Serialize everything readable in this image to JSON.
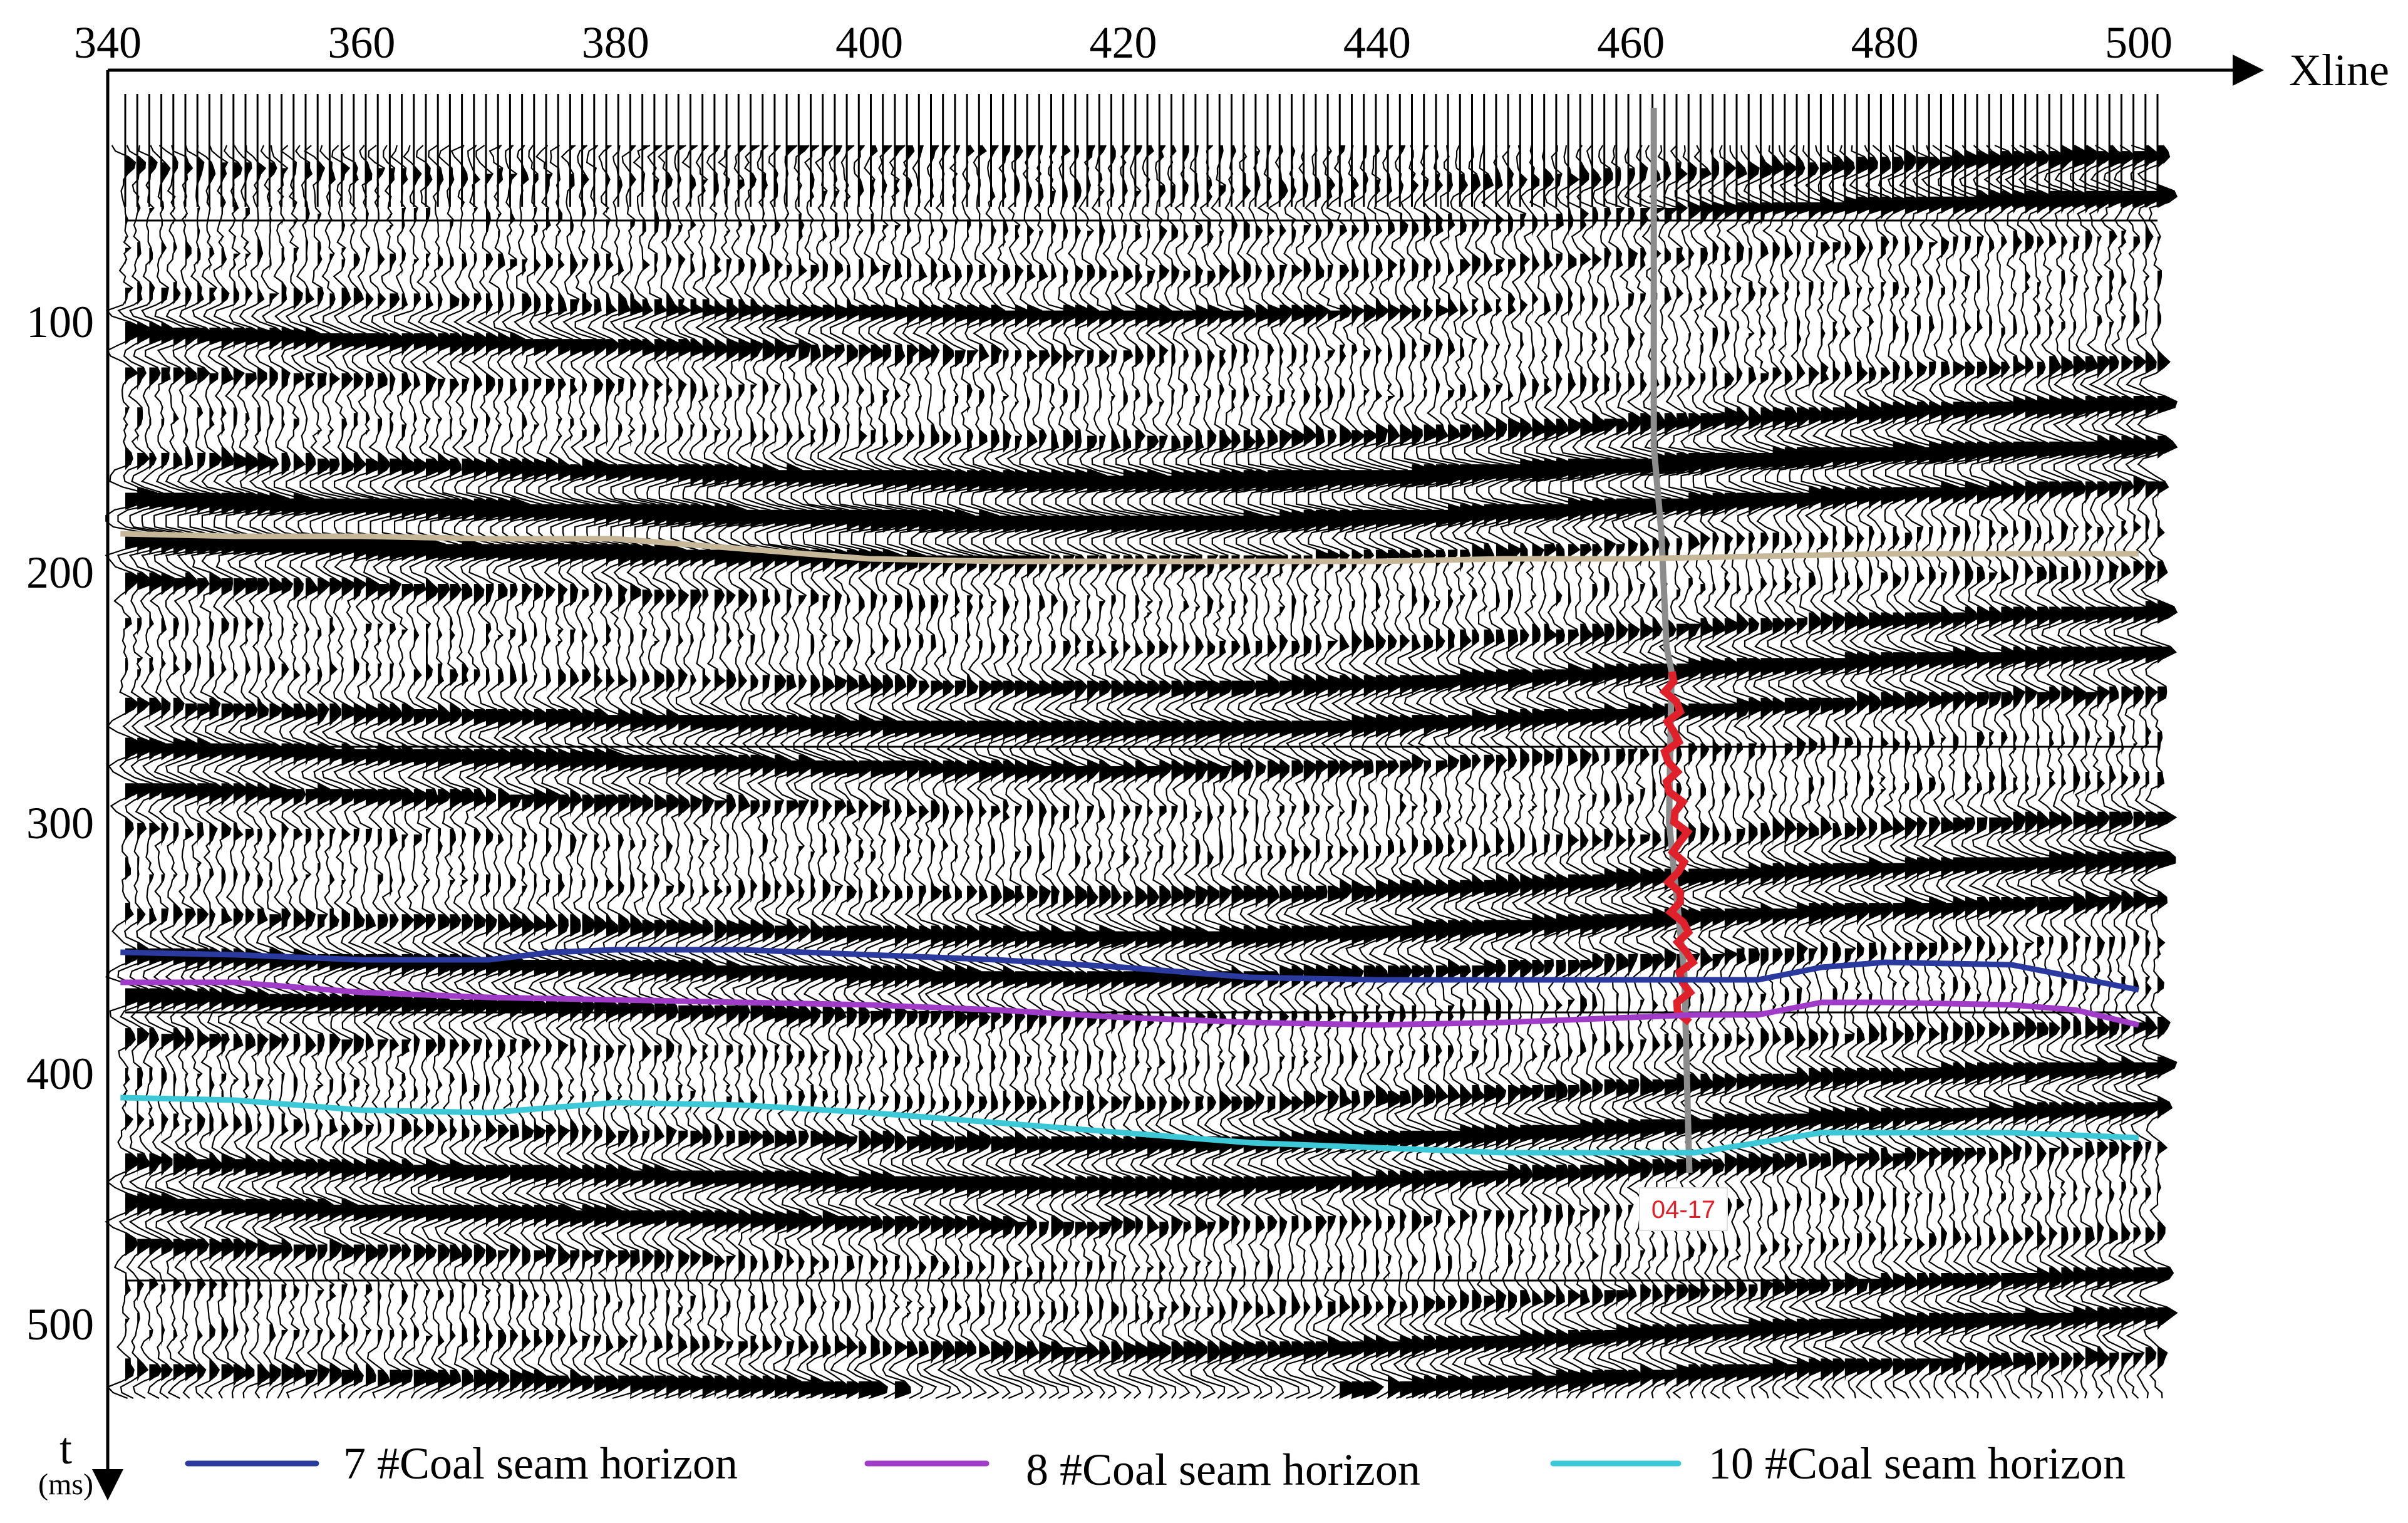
{
  "chart_data": {
    "type": "line",
    "xlabel": "Xline",
    "ylabel": "t",
    "ylabel_unit": "(ms)",
    "xlim": [
      340,
      500
    ],
    "ylim": [
      0,
      535
    ],
    "x_ticks": [
      "340",
      "360",
      "380",
      "400",
      "420",
      "440",
      "460",
      "480",
      "500"
    ],
    "y_ticks": [
      "100",
      "200",
      "300",
      "400",
      "500"
    ],
    "y_inverted": true,
    "grid": false,
    "legend_position": "bottom",
    "background": "variable-area seismic wiggle traces (black peaks on white)",
    "series": [
      {
        "name": "7 #Coal seam horizon",
        "color": "#2b3a9e",
        "x": [
          341,
          350,
          360,
          370,
          375,
          380,
          390,
          400,
          410,
          420,
          430,
          440,
          450,
          460,
          465,
          470,
          475,
          480,
          490,
          495,
          500
        ],
        "y": [
          352,
          353,
          355,
          355,
          352,
          351,
          351,
          353,
          355,
          358,
          362,
          363,
          363,
          363,
          363,
          363,
          358,
          356,
          357,
          362,
          367
        ]
      },
      {
        "name": "8 #Coal seam horizon",
        "color": "#a03cc8",
        "x": [
          341,
          350,
          360,
          370,
          380,
          390,
          400,
          410,
          420,
          430,
          440,
          450,
          460,
          465,
          470,
          475,
          480,
          490,
          495,
          500
        ],
        "y": [
          364,
          364,
          368,
          370,
          371,
          372,
          373,
          375,
          378,
          380,
          381,
          380,
          378,
          377,
          377,
          372,
          372,
          373,
          375,
          381
        ]
      },
      {
        "name": "10 #Coal seam horizon",
        "color": "#3cc8d6",
        "x": [
          341,
          350,
          360,
          370,
          380,
          390,
          400,
          410,
          420,
          430,
          440,
          450,
          460,
          465,
          470,
          475,
          480,
          490,
          500
        ],
        "y": [
          410,
          411,
          415,
          416,
          412,
          413,
          416,
          420,
          424,
          428,
          430,
          432,
          432,
          432,
          428,
          424,
          424,
          424,
          426
        ]
      },
      {
        "color": "#c8b89a",
        "x": [
          341,
          350,
          360,
          370,
          380,
          390,
          400,
          410,
          420,
          430,
          440,
          450,
          460,
          470,
          480,
          490,
          500
        ],
        "y": [
          185,
          186,
          186,
          187,
          187,
          191,
          195,
          196,
          196,
          196,
          196,
          195,
          195,
          194,
          193,
          193,
          193
        ]
      }
    ],
    "annotations": [
      {
        "text": "04-17",
        "color": "#e0202a",
        "x": 463.5,
        "y": 460
      }
    ]
  }
}
